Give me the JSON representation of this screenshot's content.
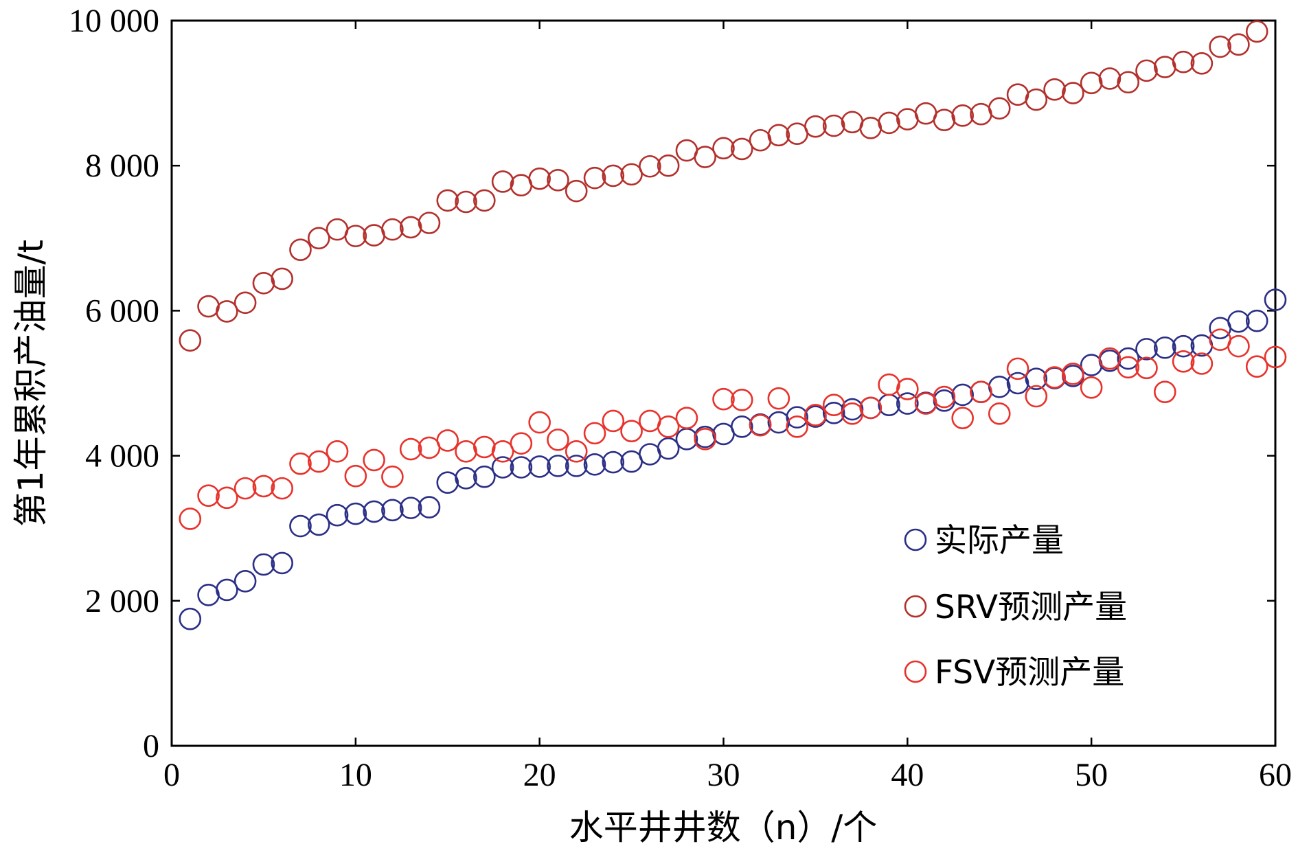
{
  "chart_data": {
    "type": "scatter",
    "title": "",
    "xlabel": "水平井井数（n）/个",
    "ylabel": "第1年累积产油量/t",
    "xlim": [
      0,
      60
    ],
    "ylim": [
      0,
      10000
    ],
    "xticks": [
      0,
      10,
      20,
      30,
      40,
      50,
      60
    ],
    "xtick_labels": [
      "0",
      "10",
      "20",
      "30",
      "40",
      "50",
      "60"
    ],
    "yticks": [
      0,
      2000,
      4000,
      6000,
      8000,
      10000
    ],
    "ytick_labels": [
      "0",
      "2 000",
      "4 000",
      "6 000",
      "8 000",
      "10 000"
    ],
    "grid": false,
    "legend_position": "lower-right",
    "marker": "hollow-circle",
    "series": [
      {
        "name": "实际产量",
        "color": "#2b2f86",
        "x": [
          1,
          2,
          3,
          4,
          5,
          6,
          7,
          8,
          9,
          10,
          11,
          12,
          13,
          14,
          15,
          16,
          17,
          18,
          19,
          20,
          21,
          22,
          23,
          24,
          25,
          26,
          27,
          28,
          29,
          30,
          31,
          32,
          33,
          34,
          35,
          36,
          37,
          38,
          39,
          40,
          41,
          42,
          43,
          44,
          45,
          46,
          47,
          48,
          49,
          50,
          51,
          52,
          53,
          54,
          55,
          56,
          57,
          58,
          59,
          60
        ],
        "y": [
          1750,
          2080,
          2150,
          2270,
          2500,
          2520,
          3030,
          3050,
          3180,
          3200,
          3230,
          3250,
          3280,
          3290,
          3630,
          3690,
          3710,
          3840,
          3840,
          3850,
          3860,
          3860,
          3880,
          3910,
          3920,
          4020,
          4100,
          4230,
          4260,
          4300,
          4400,
          4430,
          4460,
          4530,
          4540,
          4590,
          4640,
          4660,
          4700,
          4720,
          4730,
          4760,
          4840,
          4880,
          4950,
          5000,
          5060,
          5070,
          5100,
          5250,
          5310,
          5340,
          5470,
          5490,
          5510,
          5520,
          5760,
          5850,
          5860,
          6150
        ]
      },
      {
        "name": "SRV预测产量",
        "color": "#b3302c",
        "x": [
          1,
          2,
          3,
          4,
          5,
          6,
          7,
          8,
          9,
          10,
          11,
          12,
          13,
          14,
          15,
          16,
          17,
          18,
          19,
          20,
          21,
          22,
          23,
          24,
          25,
          26,
          27,
          28,
          29,
          30,
          31,
          32,
          33,
          34,
          35,
          36,
          37,
          38,
          39,
          40,
          41,
          42,
          43,
          44,
          45,
          46,
          47,
          48,
          49,
          50,
          51,
          52,
          53,
          54,
          55,
          56,
          57,
          58,
          59
        ],
        "y": [
          5590,
          6060,
          5990,
          6110,
          6380,
          6440,
          6840,
          7000,
          7120,
          7030,
          7040,
          7120,
          7150,
          7210,
          7520,
          7500,
          7520,
          7780,
          7730,
          7820,
          7800,
          7650,
          7830,
          7860,
          7880,
          7990,
          8000,
          8210,
          8120,
          8240,
          8230,
          8350,
          8420,
          8440,
          8540,
          8550,
          8600,
          8520,
          8590,
          8640,
          8720,
          8630,
          8690,
          8710,
          8790,
          8980,
          8910,
          9050,
          9000,
          9140,
          9200,
          9150,
          9310,
          9360,
          9430,
          9410,
          9640,
          9670,
          9850
        ]
      },
      {
        "name": "FSV预测产量",
        "color": "#e8322c",
        "x": [
          1,
          2,
          3,
          4,
          5,
          6,
          7,
          8,
          9,
          10,
          11,
          12,
          13,
          14,
          15,
          16,
          17,
          18,
          19,
          20,
          21,
          22,
          23,
          24,
          25,
          26,
          27,
          28,
          29,
          30,
          31,
          32,
          33,
          34,
          35,
          36,
          37,
          38,
          39,
          40,
          41,
          42,
          43,
          44,
          45,
          46,
          47,
          48,
          49,
          50,
          51,
          52,
          53,
          54,
          55,
          56,
          57,
          58,
          59,
          60
        ],
        "y": [
          3130,
          3450,
          3420,
          3550,
          3580,
          3550,
          3890,
          3920,
          4060,
          3720,
          3940,
          3710,
          4090,
          4110,
          4210,
          4060,
          4120,
          4060,
          4170,
          4460,
          4220,
          4060,
          4310,
          4480,
          4340,
          4480,
          4400,
          4520,
          4230,
          4780,
          4770,
          4420,
          4790,
          4400,
          4560,
          4700,
          4580,
          4660,
          4980,
          4920,
          4720,
          4810,
          4520,
          4880,
          4580,
          5200,
          4820,
          5080,
          5130,
          4940,
          5340,
          5220,
          5210,
          4880,
          5300,
          5270,
          5600,
          5510,
          5230,
          5360
        ]
      }
    ]
  }
}
